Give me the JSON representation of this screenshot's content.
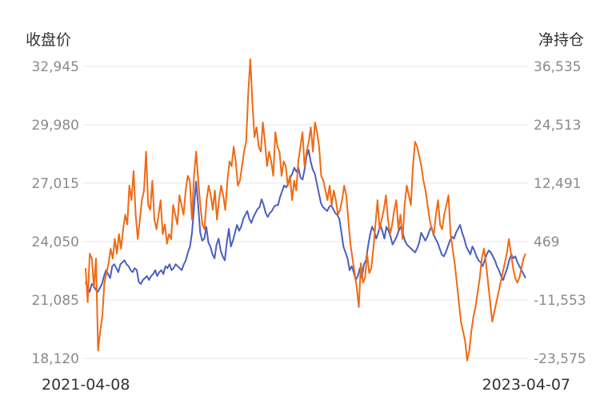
{
  "chart_data": {
    "type": "line",
    "left_axis": {
      "title": "收盘价",
      "ticks": [
        "32,945",
        "29,980",
        "27,015",
        "24,050",
        "21,085",
        "18,120"
      ],
      "range": [
        18120,
        32945
      ]
    },
    "right_axis": {
      "title": "净持仓",
      "ticks": [
        "36,535",
        "24,513",
        "12,491",
        "469",
        "-11,553",
        "-23,575"
      ],
      "range": [
        -23575,
        36535
      ]
    },
    "x_start_label": "2021-04-08",
    "x_end_label": "2023-04-07",
    "grid": true,
    "series": [
      {
        "axis": "left",
        "color": "#4a5fc1",
        "values": [
          22000,
          21700,
          21500,
          21900,
          21800,
          21600,
          21500,
          21700,
          21900,
          22300,
          22600,
          22400,
          22200,
          22800,
          22900,
          22700,
          22500,
          22900,
          23000,
          23100,
          22900,
          22800,
          22600,
          22500,
          22700,
          22600,
          22000,
          21900,
          22100,
          22200,
          22300,
          22100,
          22300,
          22400,
          22600,
          22300,
          22500,
          22600,
          22400,
          22800,
          22700,
          22900,
          22600,
          22700,
          22900,
          22800,
          22700,
          22600,
          22900,
          23100,
          23500,
          23800,
          24500,
          25800,
          27100,
          25900,
          24500,
          24100,
          24200,
          24800,
          24000,
          23800,
          23400,
          23200,
          23900,
          24200,
          23600,
          23300,
          23100,
          24000,
          24700,
          23800,
          24100,
          24500,
          24900,
          24600,
          24800,
          25200,
          25400,
          25600,
          25200,
          25000,
          25300,
          25500,
          25700,
          25800,
          26200,
          25900,
          25500,
          25300,
          25500,
          25600,
          25800,
          25900,
          25900,
          26300,
          26600,
          26900,
          26800,
          27000,
          27300,
          27500,
          27800,
          27600,
          27800,
          27300,
          27200,
          27700,
          28400,
          28700,
          28100,
          27700,
          27500,
          27000,
          26500,
          26000,
          25800,
          25700,
          25600,
          25800,
          25900,
          25700,
          25500,
          25400,
          25200,
          24500,
          23800,
          23500,
          23200,
          22600,
          22800,
          22500,
          22100,
          22300,
          22700,
          22200,
          22900,
          23100,
          23800,
          24400,
          24800,
          24600,
          24200,
          24500,
          24900,
          24600,
          24200,
          24800,
          24600,
          24300,
          23900,
          24100,
          24300,
          24600,
          24800,
          24500,
          24100,
          23900,
          23800,
          23700,
          23600,
          23500,
          23700,
          24000,
          24500,
          24300,
          24100,
          24300,
          24600,
          24800,
          24400,
          24200,
          24000,
          23700,
          23400,
          23300,
          23500,
          23800,
          24100,
          24300,
          24200,
          24500,
          24700,
          24900,
          24500,
          24200,
          23800,
          23600,
          23400,
          23800,
          23600,
          23300,
          23100,
          23000,
          22800,
          23100,
          23400,
          23600,
          23500,
          23300,
          23100,
          22800,
          22600,
          22300,
          22100,
          22400,
          22700,
          23100,
          23400,
          23200,
          23300,
          23000,
          22800,
          22600,
          22400,
          22200
        ]
      },
      {
        "axis": "right",
        "color": "#f06a14",
        "values": [
          -5000,
          -12000,
          -2000,
          -3000,
          -9000,
          -3000,
          -22000,
          -18000,
          -15000,
          -8000,
          -6000,
          -4000,
          -1000,
          -3000,
          1000,
          -2000,
          2000,
          -1000,
          3000,
          6000,
          4000,
          12000,
          9000,
          15000,
          6000,
          1000,
          5000,
          9000,
          11000,
          19000,
          8000,
          7000,
          13000,
          5000,
          3000,
          6000,
          9000,
          2000,
          4000,
          0,
          2000,
          1000,
          8000,
          6000,
          4000,
          10000,
          8000,
          6000,
          11000,
          14000,
          13000,
          5000,
          14000,
          19000,
          13000,
          8000,
          4000,
          3000,
          9000,
          12000,
          10000,
          7000,
          11000,
          5000,
          9000,
          12000,
          10000,
          7000,
          13000,
          17000,
          16000,
          20000,
          17000,
          12000,
          13000,
          16000,
          19000,
          21000,
          31000,
          38000,
          29000,
          22000,
          24000,
          20000,
          19000,
          25000,
          21000,
          16000,
          19000,
          17000,
          14000,
          23000,
          20000,
          19000,
          14000,
          17000,
          16000,
          12000,
          14000,
          9000,
          13000,
          11000,
          17000,
          20000,
          23000,
          16000,
          19000,
          21000,
          24000,
          19000,
          25000,
          23000,
          20000,
          14000,
          13000,
          11000,
          9000,
          12000,
          8000,
          11000,
          9000,
          6000,
          7000,
          9000,
          12000,
          10000,
          5000,
          0,
          -3000,
          -6000,
          -9000,
          -13000,
          -4000,
          -8000,
          -7000,
          -2000,
          -6000,
          -5000,
          -1000,
          4000,
          9000,
          3000,
          5000,
          7000,
          10000,
          5000,
          2000,
          4000,
          7000,
          9000,
          3000,
          6000,
          1000,
          8000,
          12000,
          10000,
          8000,
          16000,
          21000,
          20000,
          18000,
          16000,
          13000,
          11000,
          8000,
          5000,
          3000,
          2000,
          6000,
          9000,
          4000,
          3000,
          6000,
          8000,
          10000,
          2000,
          -1000,
          -4000,
          -8000,
          -12000,
          -16000,
          -18000,
          -20000,
          -24000,
          -22000,
          -18000,
          -15000,
          -13000,
          -10000,
          -7000,
          -3000,
          -1000,
          -4000,
          -8000,
          -12000,
          -16000,
          -14000,
          -12000,
          -10000,
          -8000,
          -6000,
          -4000,
          -2000,
          1000,
          -2000,
          -5000,
          -7000,
          -8000,
          -7000,
          -5000,
          -3000,
          -2000
        ]
      }
    ]
  }
}
